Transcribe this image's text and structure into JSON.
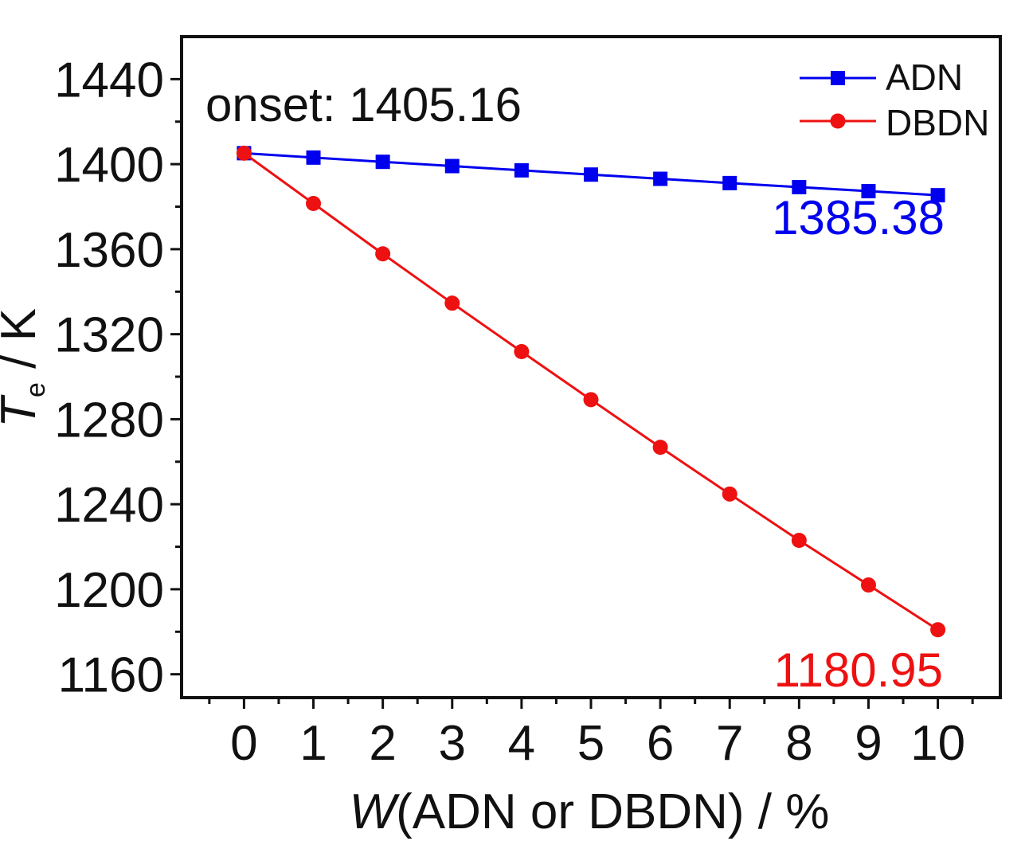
{
  "chart_data": {
    "type": "line",
    "x": [
      0,
      1,
      2,
      3,
      4,
      5,
      6,
      7,
      8,
      9,
      10
    ],
    "xlim": [
      -0.9,
      10.9
    ],
    "ylim": [
      1149,
      1460
    ],
    "x_ticks": [
      0,
      1,
      2,
      3,
      4,
      5,
      6,
      7,
      8,
      9,
      10
    ],
    "y_ticks": [
      1160,
      1200,
      1240,
      1280,
      1320,
      1360,
      1400,
      1440
    ],
    "xlabel_italic": "W",
    "xlabel_rest": "(ADN or DBDN) / %",
    "ylabel_italic": "T",
    "ylabel_sub": "e",
    "ylabel_rest": " / K",
    "grid": false,
    "legend_position": "top-right",
    "series": [
      {
        "name": "ADN",
        "color": "#0000ee",
        "marker": "square",
        "values": [
          1405.16,
          1403.1,
          1401.1,
          1399.1,
          1397.1,
          1395.1,
          1393.1,
          1391.1,
          1389.2,
          1387.3,
          1385.38
        ]
      },
      {
        "name": "DBDN",
        "color": "#ee1111",
        "marker": "circle",
        "values": [
          1405.16,
          1381.5,
          1357.8,
          1334.6,
          1311.8,
          1289.2,
          1266.8,
          1244.8,
          1223.0,
          1202.0,
          1180.95
        ]
      }
    ],
    "annotations": [
      {
        "text": "onset: 1405.16",
        "color": "#111111"
      },
      {
        "text": "1385.38",
        "color": "#0000ee"
      },
      {
        "text": "1180.95",
        "color": "#ee1111"
      }
    ]
  }
}
